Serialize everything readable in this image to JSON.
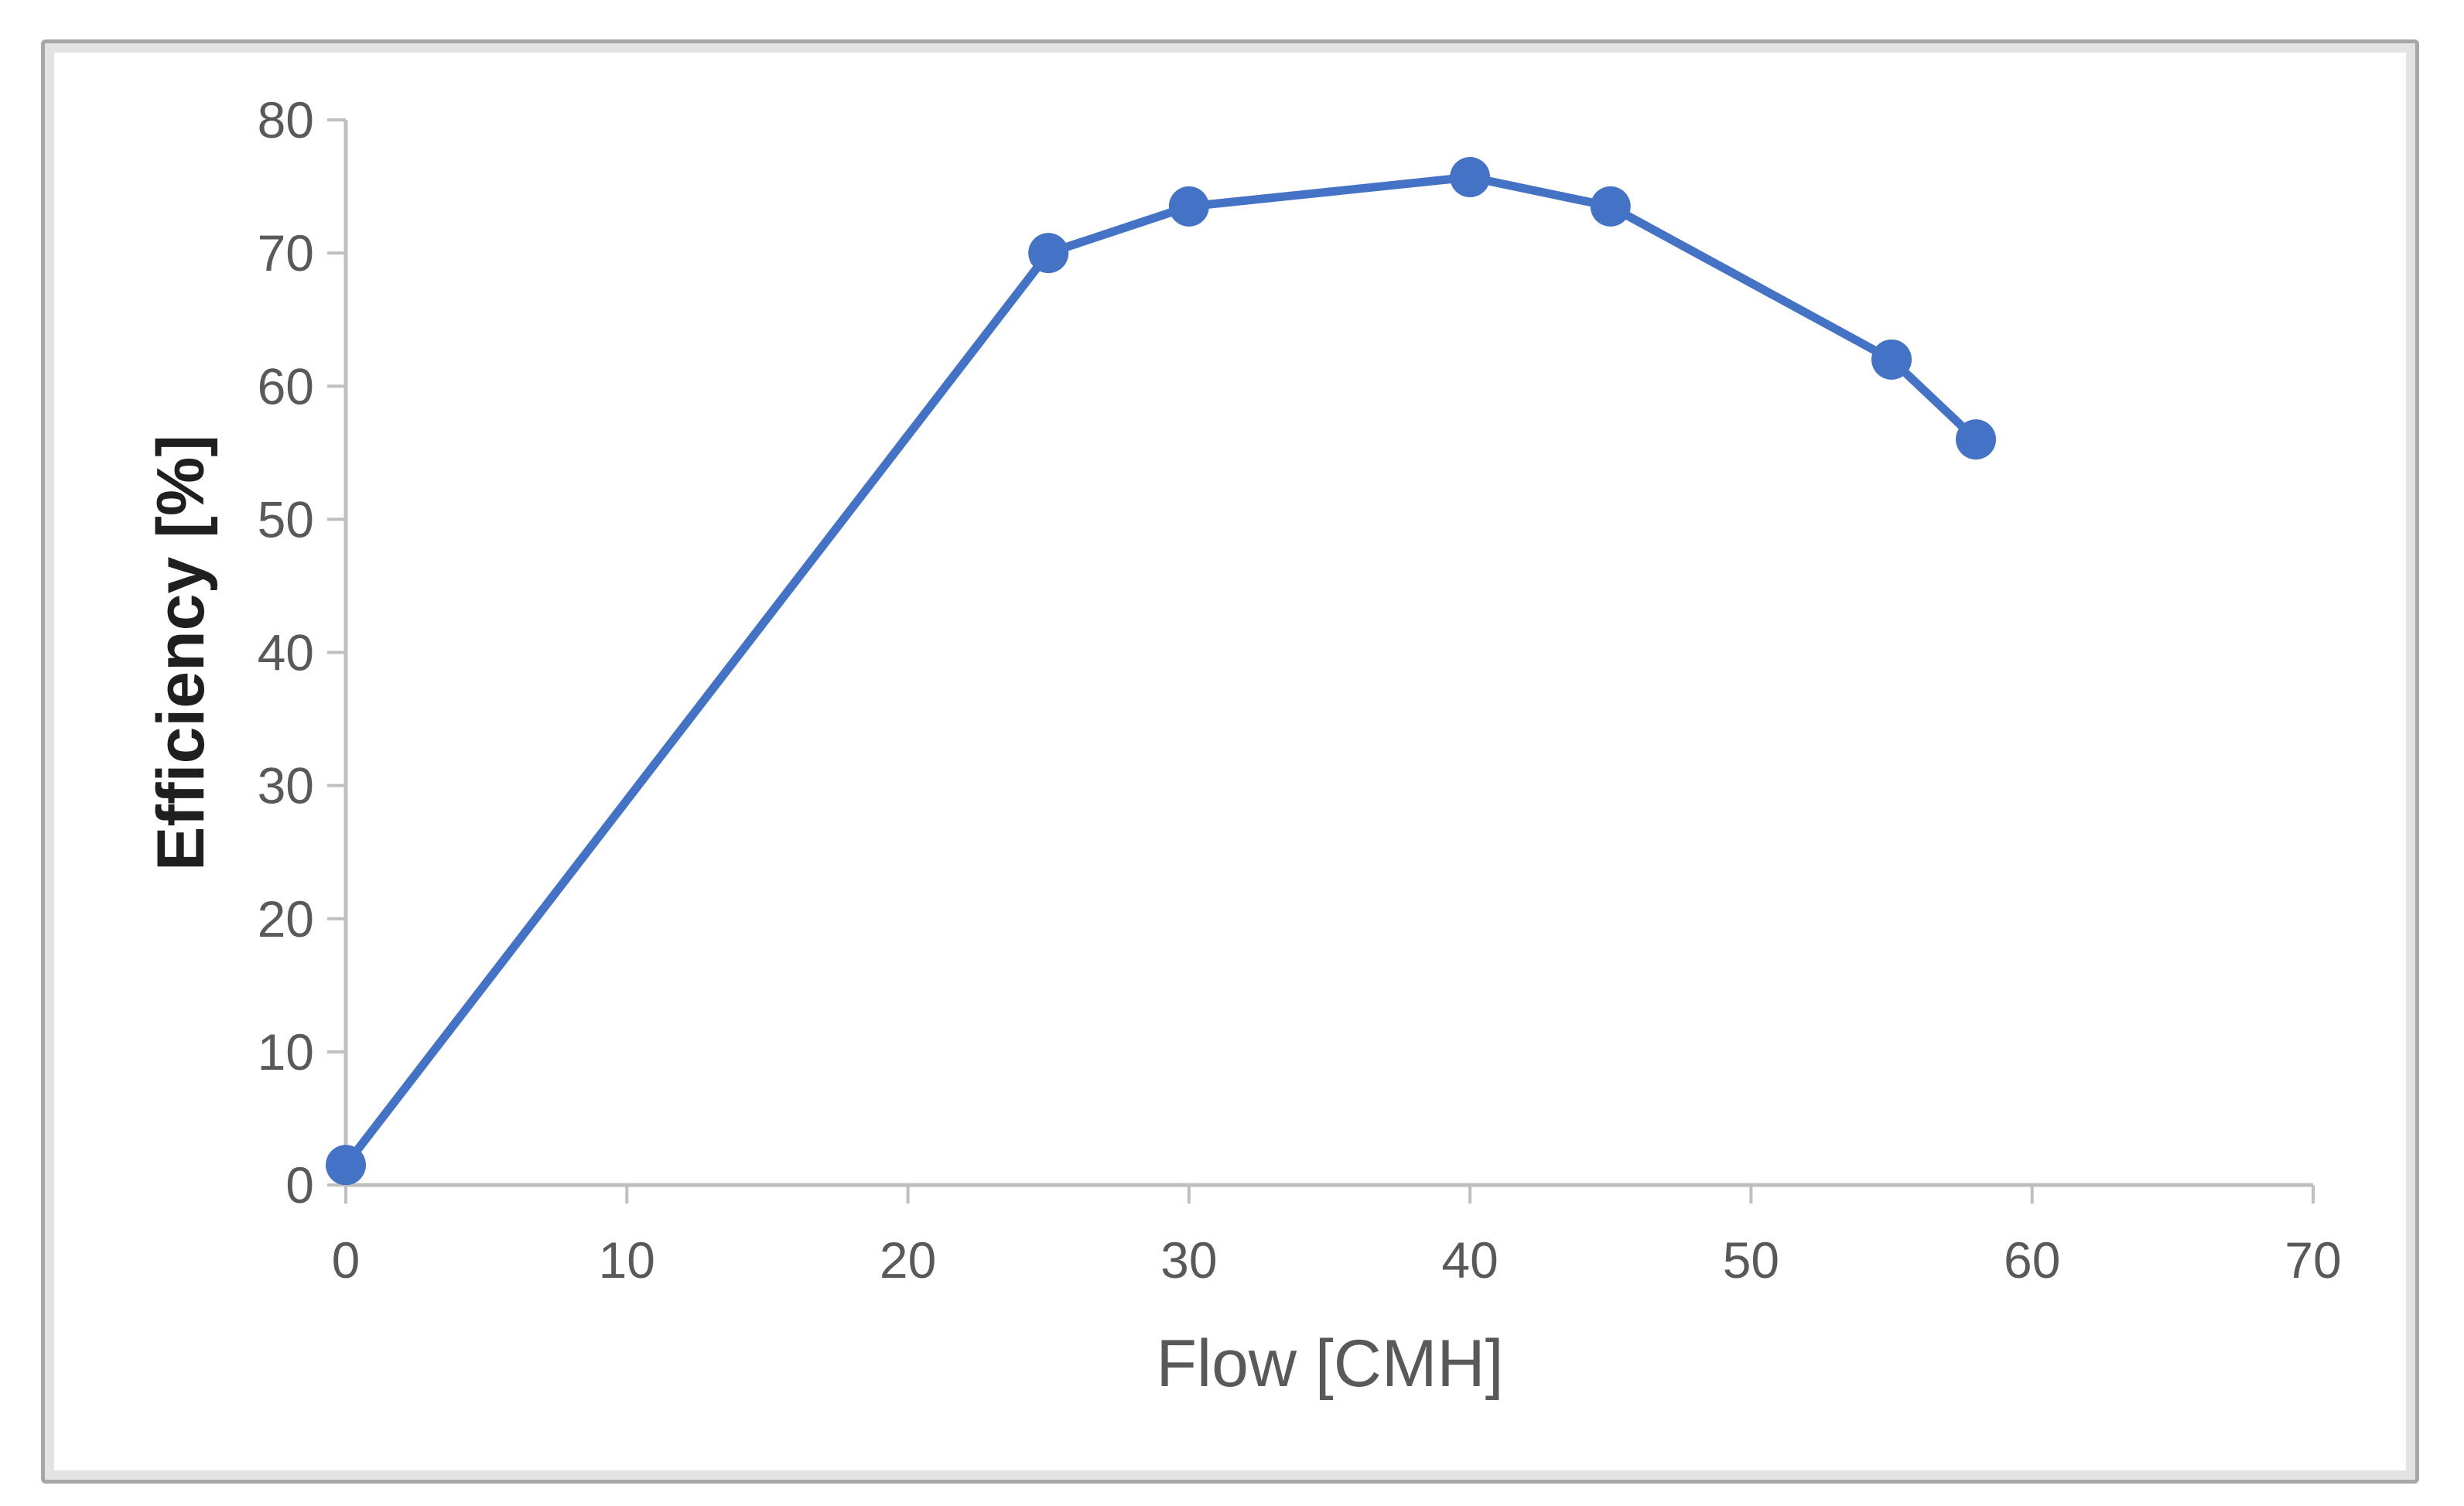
{
  "chart_data": {
    "type": "line",
    "title": "",
    "xlabel": "Flow [CMH]",
    "ylabel": "Efficiency [%]",
    "series": [
      {
        "name": "Efficiency",
        "x": [
          0,
          25,
          30,
          40,
          45,
          55,
          58
        ],
        "y": [
          1.5,
          70,
          73.5,
          75.7,
          73.5,
          62,
          56
        ]
      }
    ],
    "xlim": [
      0,
      70
    ],
    "ylim": [
      0,
      80
    ],
    "xticks": [
      0,
      10,
      20,
      30,
      40,
      50,
      60,
      70
    ],
    "yticks": [
      0,
      10,
      20,
      30,
      40,
      50,
      60,
      70,
      80
    ],
    "grid": false,
    "legend": false,
    "marker": "circle",
    "colors": {
      "series_line": "#4472C4",
      "marker_fill": "#4472C4",
      "axis_line": "#BFBFBF",
      "tick_label": "#595959",
      "x_title": "#595959",
      "y_title": "#1f1f1f",
      "plot_background": "#ffffff",
      "frame_border_outer": "#a7a7a7",
      "frame_border_inner": "#e3e3e3"
    }
  }
}
